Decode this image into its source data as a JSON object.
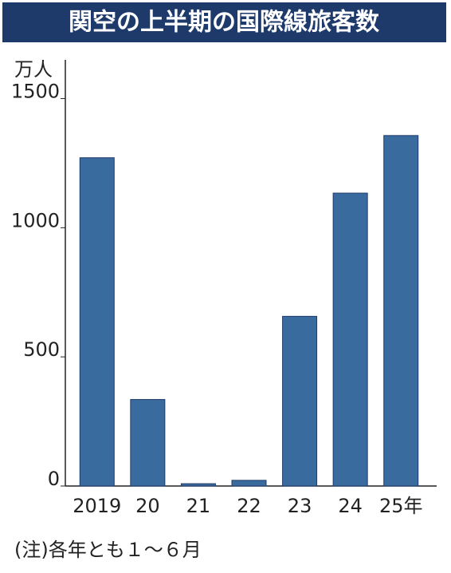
{
  "chart_data": {
    "type": "bar",
    "title": "関空の上半期の国際線旅客数",
    "y_label": "万人",
    "categories": [
      "2019",
      "20",
      "21",
      "22",
      "23",
      "24",
      "25年"
    ],
    "values": [
      1271,
      335,
      9,
      22,
      657,
      1134,
      1357
    ],
    "color": "#3a6b9e",
    "ylim": [
      0,
      1650
    ],
    "yticks": [
      0,
      500,
      1000,
      1500
    ],
    "grid": false,
    "note": "(注)各年とも１～６月"
  }
}
